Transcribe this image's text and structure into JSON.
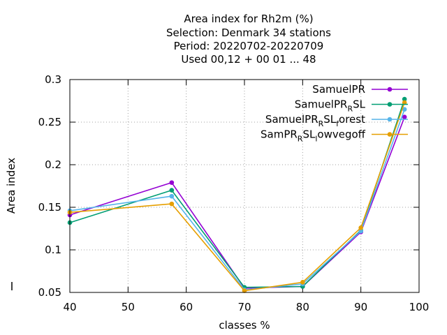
{
  "chart_data": {
    "type": "line",
    "title_lines": [
      "Area index  for Rh2m (%)",
      "Selection: Denmark     34 stations",
      "Period: 20220702-20220709",
      "Used  00,12  + 00 01 ... 48"
    ],
    "xlabel": "classes %",
    "ylabel": "Area index",
    "xlim": [
      40,
      100
    ],
    "ylim": [
      0.05,
      0.3
    ],
    "xticks": [
      40,
      50,
      60,
      70,
      80,
      90,
      100
    ],
    "xtick_labels": [
      "40",
      "50",
      "60",
      "70",
      "80",
      "90",
      "100"
    ],
    "yticks": [
      0.05,
      0.1,
      0.15,
      0.2,
      0.25,
      0.3
    ],
    "ytick_labels": [
      "0.05",
      "0.1",
      "0.15",
      "0.2",
      "0.25",
      "0.3"
    ],
    "grid": true,
    "legend_position": "top-right",
    "series": [
      {
        "name": "SamuelPR",
        "legend": {
          "base": "SamuelPR",
          "parts": []
        },
        "color": "#9400d3",
        "x": [
          40,
          57.5,
          70,
          80,
          90,
          97.5
        ],
        "y": [
          0.141,
          0.179,
          0.055,
          0.057,
          0.121,
          0.256
        ]
      },
      {
        "name": "SamuelPR_RSL",
        "legend": {
          "base": "SamuelPR",
          "parts": [
            {
              "sub": "R"
            },
            {
              "text": "SL"
            }
          ]
        },
        "color": "#009e73",
        "x": [
          40,
          57.5,
          70,
          80,
          90,
          97.5
        ],
        "y": [
          0.132,
          0.17,
          0.056,
          0.057,
          0.123,
          0.277
        ]
      },
      {
        "name": "SamuelPR_RSL_forest",
        "legend": {
          "base": "SamuelPR",
          "parts": [
            {
              "sub": "R"
            },
            {
              "text": "SL"
            },
            {
              "sub": "f"
            },
            {
              "text": "orest"
            }
          ]
        },
        "color": "#56b4e9",
        "x": [
          40,
          57.5,
          70,
          80,
          90,
          97.5
        ],
        "y": [
          0.146,
          0.163,
          0.053,
          0.06,
          0.122,
          0.265
        ]
      },
      {
        "name": "SamPR_RSL_lowvegoff",
        "legend": {
          "base": "SamPR",
          "parts": [
            {
              "sub": "R"
            },
            {
              "text": "SL"
            },
            {
              "sub": "l"
            },
            {
              "text": "owvegoff"
            }
          ]
        },
        "color": "#e69f00",
        "x": [
          40,
          57.5,
          70,
          80,
          90,
          97.5
        ],
        "y": [
          0.144,
          0.154,
          0.052,
          0.062,
          0.126,
          0.273
        ]
      }
    ]
  }
}
